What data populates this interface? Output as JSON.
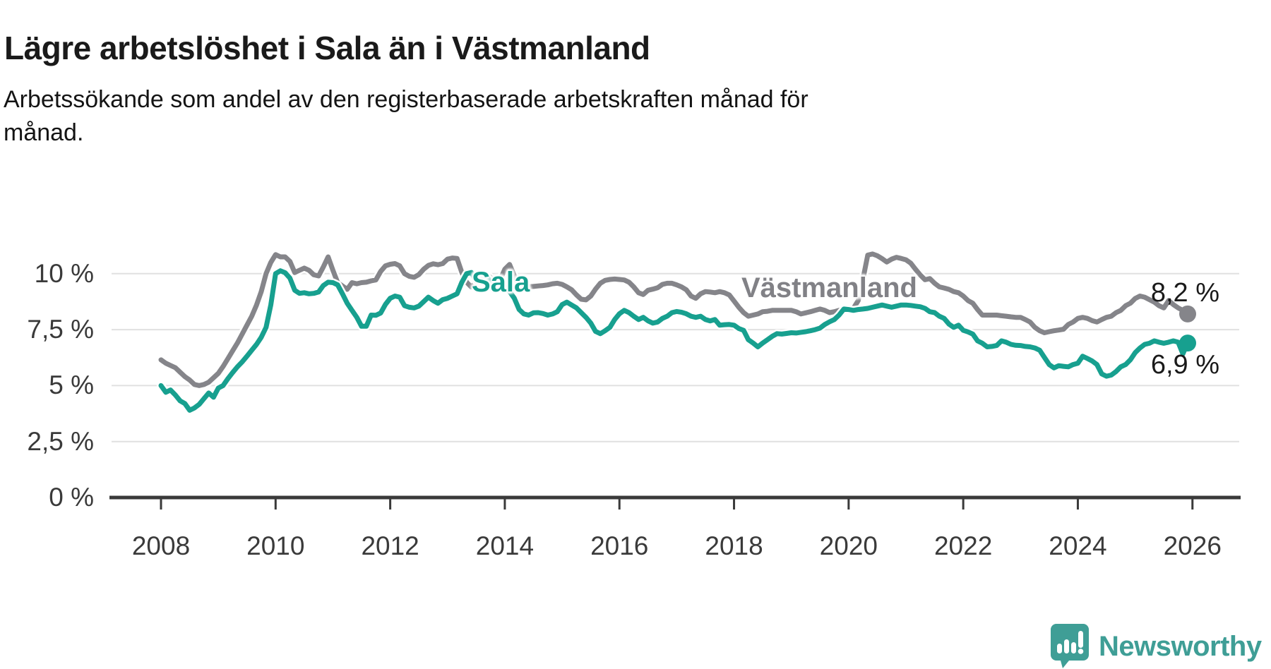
{
  "header": {
    "title": "Lägre arbetslöshet i Sala än i Västmanland",
    "subtitle_line1": "Arbetssökande som andel av den registerbaserade arbetskraften månad för",
    "subtitle_line2": "månad."
  },
  "chart_data": {
    "type": "line",
    "title": "Lägre arbetslöshet i Sala än i Västmanland",
    "xlabel": "",
    "ylabel": "",
    "x_start_year": 2008,
    "points_per_month": 1,
    "x_range": [
      2008,
      2026
    ],
    "ylim": [
      0,
      11.6
    ],
    "grid": "horizontal",
    "legend_position": "inline-labels",
    "y_ticks": [
      {
        "label": "10 %",
        "value": 10
      },
      {
        "label": "7,5 %",
        "value": 7.5
      },
      {
        "label": "5 %",
        "value": 5
      },
      {
        "label": "2,5 %",
        "value": 2.5
      },
      {
        "label": "0 %",
        "value": 0
      }
    ],
    "x_ticks": [
      {
        "label": "2008",
        "year": 2008
      },
      {
        "label": "2010",
        "year": 2010
      },
      {
        "label": "2012",
        "year": 2012
      },
      {
        "label": "2014",
        "year": 2014
      },
      {
        "label": "2016",
        "year": 2016
      },
      {
        "label": "2018",
        "year": 2018
      },
      {
        "label": "2020",
        "year": 2020
      },
      {
        "label": "2022",
        "year": 2022
      },
      {
        "label": "2024",
        "year": 2024
      },
      {
        "label": "2026",
        "year": 2026
      }
    ],
    "series": [
      {
        "name": "Västmanland",
        "color": "#85858a",
        "end_label": "8,2 %",
        "end_value": 8.2,
        "values": [
          6.15,
          6.0,
          5.9,
          5.8,
          5.6,
          5.4,
          5.25,
          5.05,
          5.0,
          5.05,
          5.15,
          5.35,
          5.55,
          5.85,
          6.2,
          6.55,
          6.9,
          7.3,
          7.7,
          8.1,
          8.6,
          9.2,
          10.0,
          10.5,
          10.85,
          10.75,
          10.75,
          10.55,
          10.05,
          10.15,
          10.25,
          10.15,
          9.95,
          9.9,
          10.3,
          10.75,
          10.15,
          9.6,
          9.45,
          9.3,
          9.6,
          9.55,
          9.6,
          9.62,
          9.68,
          9.72,
          10.1,
          10.35,
          10.42,
          10.45,
          10.35,
          10.0,
          9.88,
          9.84,
          9.96,
          10.2,
          10.37,
          10.44,
          10.4,
          10.45,
          10.65,
          10.7,
          10.68,
          10.05,
          9.62,
          9.4,
          9.62,
          9.91,
          10.0,
          9.83,
          9.47,
          9.72,
          10.2,
          10.41,
          9.9,
          9.45,
          9.4,
          9.42,
          9.43,
          9.45,
          9.47,
          9.5,
          9.55,
          9.57,
          9.52,
          9.41,
          9.28,
          9.05,
          8.86,
          8.83,
          9.0,
          9.31,
          9.57,
          9.7,
          9.74,
          9.76,
          9.74,
          9.72,
          9.62,
          9.41,
          9.15,
          9.07,
          9.26,
          9.31,
          9.37,
          9.52,
          9.57,
          9.57,
          9.5,
          9.41,
          9.28,
          9.0,
          8.9,
          9.1,
          9.2,
          9.18,
          9.15,
          9.2,
          9.15,
          9.05,
          8.78,
          8.5,
          8.26,
          8.1,
          8.15,
          8.2,
          8.3,
          8.32,
          8.36,
          8.36,
          8.36,
          8.36,
          8.36,
          8.3,
          8.2,
          8.25,
          8.3,
          8.36,
          8.42,
          8.36,
          8.26,
          8.3,
          8.36,
          8.42,
          8.42,
          8.45,
          8.8,
          9.75,
          10.83,
          10.88,
          10.8,
          10.67,
          10.52,
          10.65,
          10.73,
          10.68,
          10.62,
          10.47,
          10.2,
          9.94,
          9.73,
          9.78,
          9.57,
          9.41,
          9.36,
          9.3,
          9.2,
          9.15,
          9.0,
          8.8,
          8.68,
          8.4,
          8.15,
          8.15,
          8.15,
          8.15,
          8.12,
          8.1,
          8.07,
          8.05,
          8.05,
          7.95,
          7.84,
          7.6,
          7.45,
          7.36,
          7.41,
          7.45,
          7.48,
          7.52,
          7.73,
          7.84,
          8.0,
          8.05,
          8.0,
          7.9,
          7.84,
          7.95,
          8.05,
          8.1,
          8.26,
          8.36,
          8.57,
          8.68,
          8.89,
          9.0,
          8.95,
          8.84,
          8.73,
          8.57,
          8.47,
          8.8,
          8.62,
          8.47,
          8.36,
          8.2
        ]
      },
      {
        "name": "Sala",
        "color": "#17a08f",
        "end_label": "6,9 %",
        "end_value": 6.9,
        "values": [
          5.0,
          4.7,
          4.8,
          4.58,
          4.32,
          4.2,
          3.9,
          4.0,
          4.16,
          4.42,
          4.67,
          4.48,
          4.89,
          5.0,
          5.31,
          5.58,
          5.84,
          6.06,
          6.31,
          6.58,
          6.84,
          7.16,
          7.6,
          8.6,
          10.0,
          10.13,
          10.04,
          9.8,
          9.26,
          9.12,
          9.15,
          9.1,
          9.12,
          9.18,
          9.47,
          9.62,
          9.6,
          9.5,
          9.1,
          8.68,
          8.36,
          8.05,
          7.65,
          7.65,
          8.15,
          8.14,
          8.24,
          8.63,
          8.9,
          9.0,
          8.95,
          8.57,
          8.5,
          8.47,
          8.55,
          8.75,
          8.95,
          8.8,
          8.68,
          8.84,
          8.9,
          9.0,
          9.1,
          9.62,
          10.0,
          10.05,
          9.68,
          9.83,
          9.94,
          9.62,
          9.37,
          9.45,
          9.41,
          9.2,
          8.9,
          8.4,
          8.2,
          8.15,
          8.25,
          8.26,
          8.22,
          8.15,
          8.2,
          8.3,
          8.62,
          8.73,
          8.6,
          8.47,
          8.26,
          8.05,
          7.79,
          7.42,
          7.32,
          7.45,
          7.6,
          7.95,
          8.21,
          8.36,
          8.26,
          8.1,
          7.95,
          8.05,
          7.89,
          7.79,
          7.84,
          8.0,
          8.1,
          8.26,
          8.31,
          8.28,
          8.21,
          8.1,
          8.05,
          8.1,
          7.95,
          7.89,
          7.95,
          7.7,
          7.72,
          7.73,
          7.7,
          7.55,
          7.47,
          7.05,
          6.9,
          6.73,
          6.9,
          7.05,
          7.2,
          7.32,
          7.3,
          7.33,
          7.36,
          7.35,
          7.38,
          7.41,
          7.45,
          7.5,
          7.57,
          7.73,
          7.85,
          7.95,
          8.15,
          8.42,
          8.4,
          8.36,
          8.4,
          8.42,
          8.45,
          8.5,
          8.55,
          8.6,
          8.55,
          8.5,
          8.55,
          8.6,
          8.6,
          8.58,
          8.55,
          8.52,
          8.45,
          8.3,
          8.26,
          8.1,
          8.0,
          7.75,
          7.6,
          7.7,
          7.47,
          7.4,
          7.3,
          7.0,
          6.89,
          6.73,
          6.75,
          6.79,
          7.0,
          6.94,
          6.84,
          6.8,
          6.79,
          6.75,
          6.73,
          6.68,
          6.58,
          6.26,
          5.94,
          5.79,
          5.89,
          5.86,
          5.84,
          5.94,
          6.0,
          6.31,
          6.21,
          6.1,
          5.94,
          5.52,
          5.42,
          5.47,
          5.63,
          5.84,
          5.94,
          6.15,
          6.47,
          6.68,
          6.84,
          6.89,
          7.0,
          6.94,
          6.89,
          6.94,
          7.0,
          6.94,
          6.42,
          6.9
        ]
      }
    ]
  },
  "labels": {
    "sala": "Sala",
    "vastmanland": "Västmanland",
    "end_vastmanland": "8,2 %",
    "end_sala": "6,9 %"
  },
  "footer": {
    "brand": "Newsworthy"
  },
  "colors": {
    "sala": "#17a08f",
    "vastmanland": "#85858a",
    "brand_teal": "#3f9e96",
    "gridline": "#e0e0e0",
    "axis": "#3a3a3a",
    "text_dark": "#1a1a1a"
  }
}
